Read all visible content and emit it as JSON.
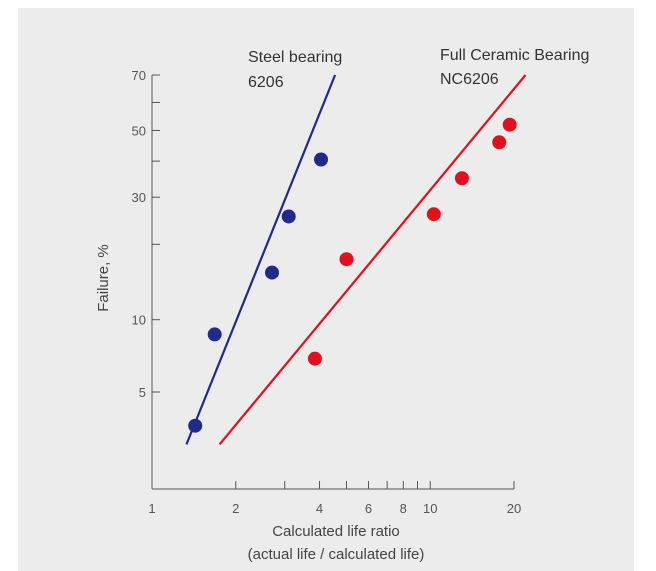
{
  "chart_data": {
    "type": "scatter",
    "title": "",
    "xlabel": "Calculated life ratio",
    "xlabel_sub": "(actual life / calculated life)",
    "ylabel": "Failure, %",
    "x_scale": "log",
    "y_scale": "weibull-probability",
    "xlim": [
      1,
      20
    ],
    "ylim": [
      1.65,
      70
    ],
    "x_ticks": [
      1,
      2,
      4,
      6,
      8,
      10,
      20
    ],
    "x_minor_ticks": [
      3,
      5,
      7,
      9
    ],
    "y_ticks": [
      5,
      10,
      30,
      50,
      70
    ],
    "y_minor_ticks": [
      20,
      40,
      60
    ],
    "grid": false,
    "series": [
      {
        "name": "Steel bearing",
        "name_line2": "6206",
        "color": "#1f2a8a",
        "points": [
          {
            "x": 1.43,
            "y": 3.6
          },
          {
            "x": 1.68,
            "y": 8.7
          },
          {
            "x": 2.7,
            "y": 15.5
          },
          {
            "x": 3.1,
            "y": 25.5
          },
          {
            "x": 4.05,
            "y": 40.5
          }
        ],
        "fit_line": [
          {
            "x": 1.33,
            "y": 3.0
          },
          {
            "x": 4.55,
            "y": 70
          }
        ]
      },
      {
        "name": "Full Ceramic Bearing",
        "name_line2": "NC6206",
        "color": "#e0101f",
        "points": [
          {
            "x": 3.85,
            "y": 6.9
          },
          {
            "x": 5.0,
            "y": 17.5
          },
          {
            "x": 10.3,
            "y": 26.0
          },
          {
            "x": 13.0,
            "y": 35.0
          },
          {
            "x": 17.7,
            "y": 46.0
          },
          {
            "x": 19.3,
            "y": 52.0
          }
        ],
        "fit_line": [
          {
            "x": 1.75,
            "y": 3.0
          },
          {
            "x": 22.0,
            "y": 70
          }
        ]
      }
    ]
  }
}
